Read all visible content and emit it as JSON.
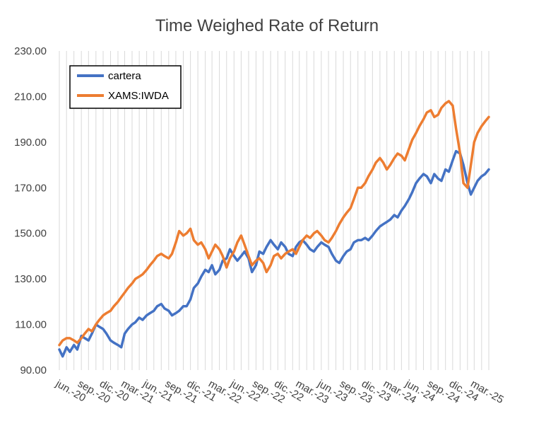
{
  "chart_data": {
    "type": "line",
    "title": "Time Weighed Rate of Return",
    "xlabel": "",
    "ylabel": "",
    "ylim": [
      90,
      230
    ],
    "y_ticks": [
      "90.00",
      "110.00",
      "130.00",
      "150.00",
      "170.00",
      "190.00",
      "210.00",
      "230.00"
    ],
    "x_tick_labels": [
      "jun.-20",
      "sep.-20",
      "dic.-20",
      "mar.-21",
      "jun.-21",
      "sep.-21",
      "dic.-21",
      "mar.-22",
      "jun.-22",
      "sep.-22",
      "dic.-22",
      "mar.-23",
      "jun.-23",
      "sep.-23",
      "dic.-23",
      "mar.-24",
      "jun.-24",
      "sep.-24",
      "dic.-24",
      "mar.-25"
    ],
    "grid": "vertical",
    "legend_position": "top-left",
    "x": [
      "2020-06-01",
      "2020-06-15",
      "2020-07-01",
      "2020-07-15",
      "2020-08-01",
      "2020-08-15",
      "2020-09-01",
      "2020-09-15",
      "2020-10-01",
      "2020-10-15",
      "2020-11-01",
      "2020-11-15",
      "2020-12-01",
      "2020-12-15",
      "2021-01-01",
      "2021-01-15",
      "2021-02-01",
      "2021-02-15",
      "2021-03-01",
      "2021-03-15",
      "2021-04-01",
      "2021-04-15",
      "2021-05-01",
      "2021-05-15",
      "2021-06-01",
      "2021-06-15",
      "2021-07-01",
      "2021-07-15",
      "2021-08-01",
      "2021-08-15",
      "2021-09-01",
      "2021-09-15",
      "2021-10-01",
      "2021-10-15",
      "2021-11-01",
      "2021-11-15",
      "2021-12-01",
      "2021-12-15",
      "2022-01-01",
      "2022-01-15",
      "2022-02-01",
      "2022-02-15",
      "2022-03-01",
      "2022-03-15",
      "2022-04-01",
      "2022-04-15",
      "2022-05-01",
      "2022-05-15",
      "2022-06-01",
      "2022-06-15",
      "2022-07-01",
      "2022-07-15",
      "2022-08-01",
      "2022-08-15",
      "2022-09-01",
      "2022-09-15",
      "2022-10-01",
      "2022-10-15",
      "2022-11-01",
      "2022-11-15",
      "2022-12-01",
      "2022-12-15",
      "2023-01-01",
      "2023-01-15",
      "2023-02-01",
      "2023-02-15",
      "2023-03-01",
      "2023-03-15",
      "2023-04-01",
      "2023-04-15",
      "2023-05-01",
      "2023-05-15",
      "2023-06-01",
      "2023-06-15",
      "2023-07-01",
      "2023-07-15",
      "2023-08-01",
      "2023-08-15",
      "2023-09-01",
      "2023-09-15",
      "2023-10-01",
      "2023-10-15",
      "2023-11-01",
      "2023-11-15",
      "2023-12-01",
      "2023-12-15",
      "2024-01-01",
      "2024-01-15",
      "2024-02-01",
      "2024-02-15",
      "2024-03-01",
      "2024-03-15",
      "2024-04-01",
      "2024-04-15",
      "2024-05-01",
      "2024-05-15",
      "2024-06-01",
      "2024-06-15",
      "2024-07-01",
      "2024-07-15",
      "2024-08-01",
      "2024-08-15",
      "2024-09-01",
      "2024-09-15",
      "2024-10-01",
      "2024-10-15",
      "2024-11-01",
      "2024-11-15",
      "2024-12-01",
      "2024-12-15",
      "2025-01-01",
      "2025-01-15",
      "2025-02-01",
      "2025-02-15",
      "2025-03-01",
      "2025-03-15",
      "2025-04-01",
      "2025-04-15",
      "2025-05-01"
    ],
    "series": [
      {
        "name": "cartera",
        "color": "#4472C4",
        "values": [
          99,
          96,
          100,
          98,
          101,
          99,
          105,
          104,
          103,
          106,
          110,
          109,
          108,
          106,
          103,
          102,
          101,
          100,
          106,
          108,
          110,
          111,
          113,
          112,
          114,
          115,
          116,
          118,
          119,
          117,
          116,
          114,
          115,
          116,
          118,
          118,
          121,
          126,
          128,
          131,
          134,
          133,
          136,
          132,
          134,
          138,
          139,
          143,
          140,
          138,
          140,
          142,
          139,
          133,
          136,
          142,
          141,
          144,
          147,
          145,
          143,
          146,
          144,
          141,
          140,
          144,
          146,
          147,
          145,
          143,
          142,
          144,
          146,
          145,
          144,
          141,
          138,
          137,
          140,
          142,
          143,
          146,
          147,
          147,
          148,
          147,
          149,
          151,
          153,
          154,
          155,
          156,
          158,
          157,
          160,
          162,
          165,
          168,
          172,
          174,
          176,
          175,
          172,
          176,
          174,
          173,
          178,
          177,
          182,
          186,
          185,
          180,
          172,
          167,
          170,
          173,
          175,
          176,
          178
        ]
      },
      {
        "name": "XAMS:IWDA",
        "color": "#ED7D31",
        "values": [
          101,
          103,
          104,
          104,
          103,
          102,
          104,
          106,
          108,
          107,
          110,
          112,
          114,
          115,
          116,
          118,
          120,
          122,
          124,
          126,
          128,
          130,
          131,
          132,
          134,
          136,
          138,
          140,
          141,
          140,
          139,
          141,
          146,
          151,
          149,
          150,
          152,
          147,
          145,
          146,
          143,
          139,
          142,
          145,
          143,
          140,
          135,
          139,
          142,
          146,
          149,
          145,
          140,
          136,
          138,
          139,
          137,
          133,
          136,
          140,
          141,
          139,
          141,
          142,
          143,
          141,
          144,
          147,
          149,
          148,
          150,
          151,
          149,
          147,
          146,
          148,
          151,
          154,
          157,
          159,
          161,
          165,
          170,
          170,
          172,
          175,
          178,
          181,
          183,
          181,
          178,
          180,
          183,
          185,
          184,
          182,
          187,
          191,
          194,
          197,
          200,
          203,
          204,
          201,
          202,
          205,
          207,
          208,
          206,
          196,
          185,
          172,
          170,
          180,
          190,
          194,
          197,
          199,
          201
        ]
      }
    ]
  }
}
